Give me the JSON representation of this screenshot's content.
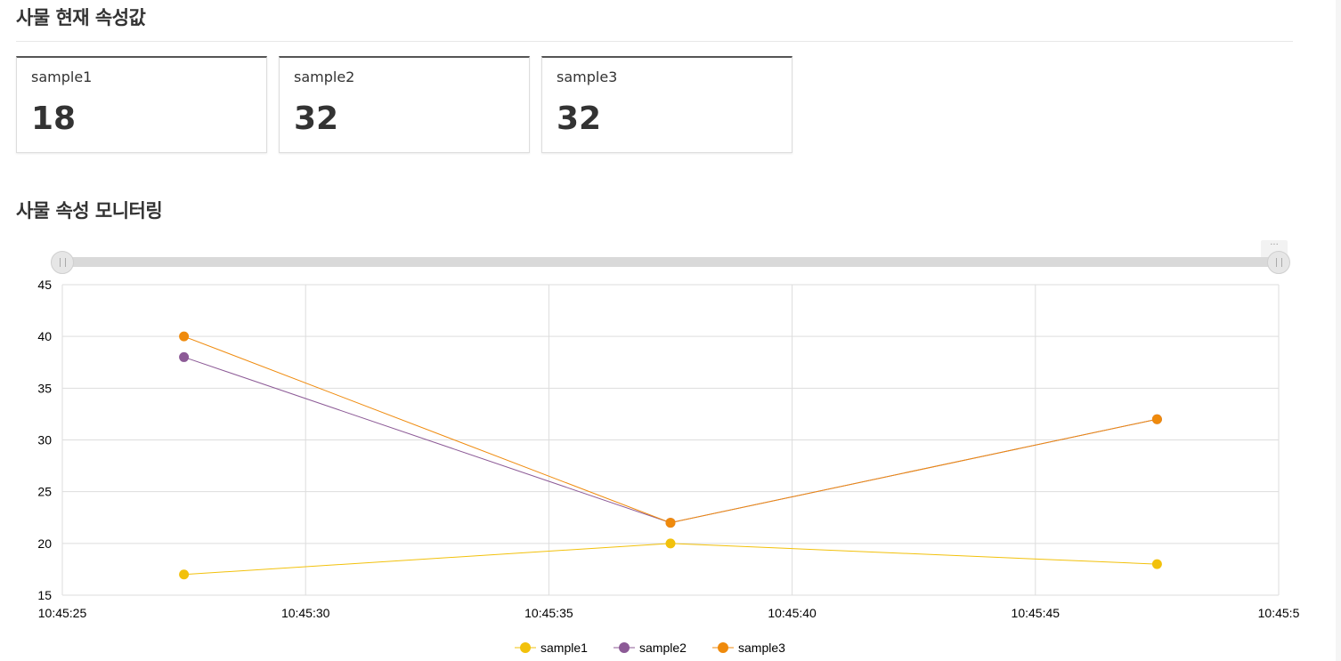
{
  "section1": {
    "title": "사물 현재 속성값"
  },
  "cards": [
    {
      "label": "sample1",
      "value": "18"
    },
    {
      "label": "sample2",
      "value": "32"
    },
    {
      "label": "sample3",
      "value": "32"
    }
  ],
  "section2": {
    "title": "사물 속성 모니터링"
  },
  "chart_menu_icon": "more-icon",
  "chart_data": {
    "type": "line",
    "x_ticks": [
      "10:45:25",
      "10:45:30",
      "10:45:35",
      "10:45:40",
      "10:45:45",
      "10:45:5"
    ],
    "y_ticks": [
      "15",
      "20",
      "25",
      "30",
      "35",
      "40",
      "45"
    ],
    "xlim": [
      "10:45:25",
      "10:45:50"
    ],
    "ylim": [
      15,
      45
    ],
    "grid": true,
    "legend_position": "bottom",
    "x": [
      "10:45:27.5",
      "10:45:37.5",
      "10:45:47.5"
    ],
    "series": [
      {
        "name": "sample1",
        "color": "#f2c10b",
        "values": [
          17,
          20,
          18
        ]
      },
      {
        "name": "sample2",
        "color": "#8c5a96",
        "values": [
          38,
          22,
          32
        ]
      },
      {
        "name": "sample3",
        "color": "#ef8a0c",
        "values": [
          40,
          22,
          32
        ]
      }
    ]
  }
}
